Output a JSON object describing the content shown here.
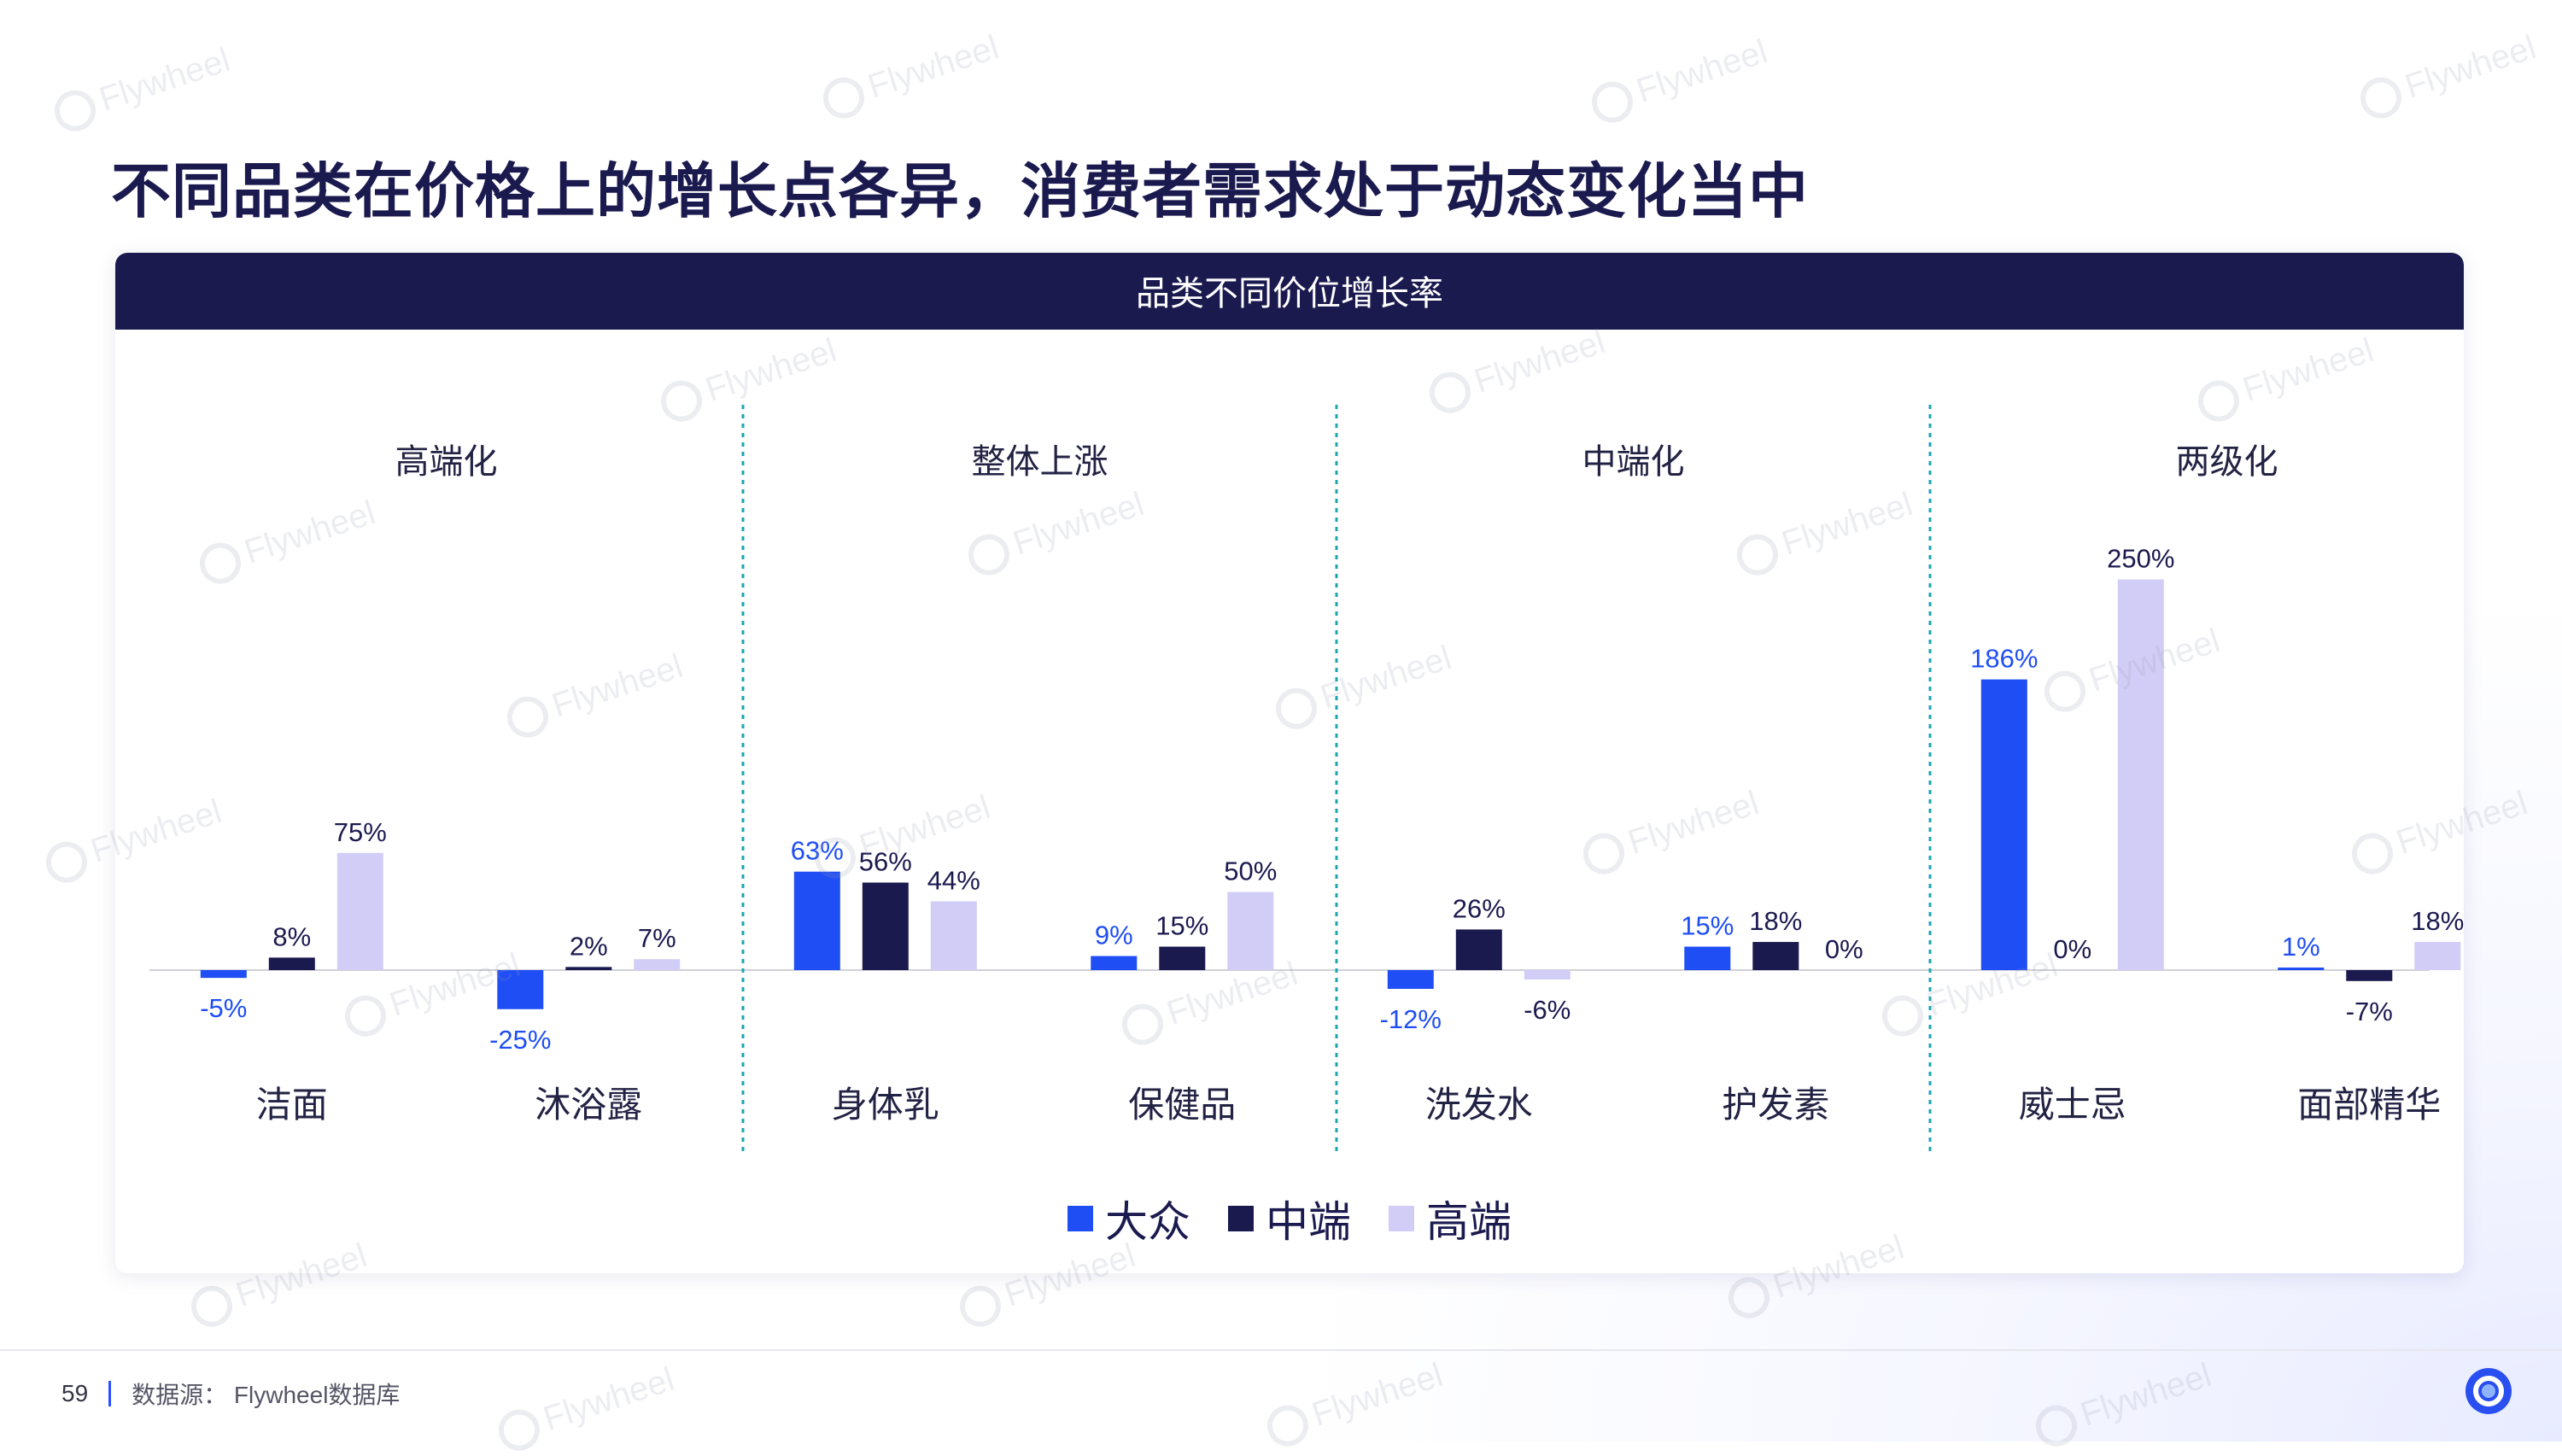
{
  "title": "不同品类在价格上的增长点各异，消费者需求处于动态变化当中",
  "card_header": "品类不同价位增长率",
  "watermark_text": "Flywheel",
  "colors": {
    "mass": "#1f4ef5",
    "mid": "#1b1a4f",
    "high": "#d2cdf6",
    "title": "#1b1a4f",
    "divider": "#1aa6b3"
  },
  "chart_data": {
    "type": "bar",
    "title": "品类不同价位增长率",
    "series_names": [
      "大众",
      "中端",
      "高端"
    ],
    "groups": [
      {
        "label": "高端化",
        "categories": [
          {
            "name": "洁面",
            "values": [
              -5,
              8,
              75
            ],
            "labels": [
              "-5%",
              "8%",
              "75%"
            ]
          },
          {
            "name": "沐浴露",
            "values": [
              -25,
              2,
              7
            ],
            "labels": [
              "-25%",
              "2%",
              "7%"
            ]
          }
        ]
      },
      {
        "label": "整体上涨",
        "categories": [
          {
            "name": "身体乳",
            "values": [
              63,
              56,
              44
            ],
            "labels": [
              "63%",
              "56%",
              "44%"
            ]
          },
          {
            "name": "保健品",
            "values": [
              9,
              15,
              50
            ],
            "labels": [
              "9%",
              "15%",
              "50%"
            ]
          }
        ]
      },
      {
        "label": "中端化",
        "categories": [
          {
            "name": "洗发水",
            "values": [
              -12,
              26,
              -6
            ],
            "labels": [
              "-12%",
              "26%",
              "-6%"
            ]
          },
          {
            "name": "护发素",
            "values": [
              15,
              18,
              0
            ],
            "labels": [
              "15%",
              "18%",
              "0%"
            ]
          }
        ]
      },
      {
        "label": "两级化",
        "categories": [
          {
            "name": "威士忌",
            "values": [
              186,
              0,
              250
            ],
            "labels": [
              "186%",
              "0%",
              "250%"
            ]
          },
          {
            "name": "面部精华",
            "values": [
              1,
              -7,
              18
            ],
            "labels": [
              "1%",
              "-7%",
              "18%"
            ]
          }
        ]
      }
    ],
    "legend": "bottom-center"
  },
  "legend": [
    {
      "label": "大众",
      "color": "#1f4ef5"
    },
    {
      "label": "中端",
      "color": "#1b1a4f"
    },
    {
      "label": "高端",
      "color": "#d2cdf6"
    }
  ],
  "footer": {
    "page_number": "59",
    "source": "数据源：  Flywheel数据库"
  }
}
